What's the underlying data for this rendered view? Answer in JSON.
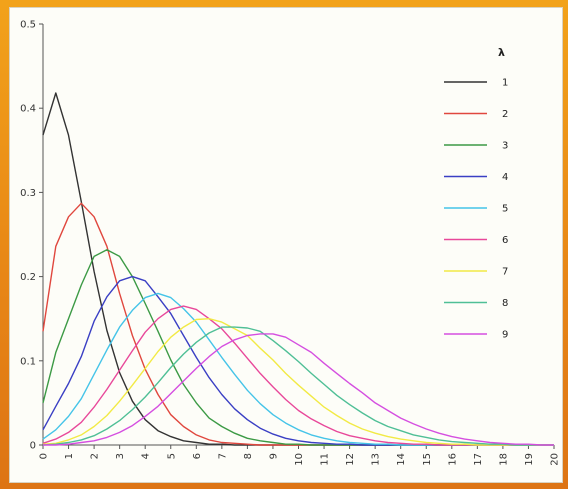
{
  "chart_data": {
    "type": "line",
    "title": "",
    "xlabel": "",
    "ylabel": "",
    "xlim": [
      0,
      20
    ],
    "ylim": [
      0,
      0.5
    ],
    "x_ticks": [
      "0",
      "1",
      "2",
      "3",
      "4",
      "5",
      "6",
      "7",
      "8",
      "9",
      "10",
      "11",
      "12",
      "13",
      "14",
      "15",
      "16",
      "17",
      "18",
      "19",
      "20"
    ],
    "y_ticks": [
      "0",
      "0.1",
      "0.2",
      "0.3",
      "0.4",
      "0.5"
    ],
    "grid": false,
    "legend": {
      "title": "λ",
      "placement": "top-right"
    },
    "x": [
      0,
      0.5,
      1,
      1.5,
      2,
      2.5,
      3,
      3.5,
      4,
      4.5,
      5,
      5.5,
      6,
      6.5,
      7,
      7.5,
      8,
      8.5,
      9,
      9.5,
      10,
      10.5,
      11,
      11.5,
      12,
      12.5,
      13,
      13.5,
      14,
      14.5,
      15,
      15.5,
      16,
      16.5,
      17,
      17.5,
      18,
      18.5,
      19,
      19.5,
      20
    ],
    "series": [
      {
        "name": "1",
        "color": "#333333",
        "values": [
          0.368,
          0.418,
          0.368,
          0.289,
          0.206,
          0.136,
          0.086,
          0.052,
          0.03,
          0.017,
          0.01,
          0.005,
          0.003,
          0.001,
          0.001,
          0,
          0,
          0,
          0,
          0,
          0,
          0,
          0,
          0,
          0,
          0,
          0,
          0,
          0,
          0,
          0,
          0,
          0,
          0,
          0,
          0,
          0,
          0,
          0,
          0,
          0
        ]
      },
      {
        "name": "2",
        "color": "#e0473e",
        "values": [
          0.135,
          0.236,
          0.271,
          0.287,
          0.271,
          0.236,
          0.18,
          0.13,
          0.09,
          0.06,
          0.036,
          0.022,
          0.012,
          0.006,
          0.003,
          0.002,
          0.001,
          0,
          0,
          0,
          0,
          0,
          0,
          0,
          0,
          0,
          0,
          0,
          0,
          0,
          0,
          0,
          0,
          0,
          0,
          0,
          0,
          0,
          0,
          0,
          0
        ]
      },
      {
        "name": "3",
        "color": "#3c9a45",
        "values": [
          0.05,
          0.11,
          0.15,
          0.19,
          0.224,
          0.232,
          0.224,
          0.2,
          0.168,
          0.135,
          0.101,
          0.072,
          0.05,
          0.032,
          0.022,
          0.014,
          0.008,
          0.005,
          0.003,
          0.001,
          0.001,
          0,
          0,
          0,
          0,
          0,
          0,
          0,
          0,
          0,
          0,
          0,
          0,
          0,
          0,
          0,
          0,
          0,
          0,
          0,
          0
        ]
      },
      {
        "name": "4",
        "color": "#3a3fc4",
        "values": [
          0.018,
          0.046,
          0.073,
          0.105,
          0.147,
          0.176,
          0.195,
          0.2,
          0.195,
          0.176,
          0.156,
          0.13,
          0.104,
          0.08,
          0.06,
          0.043,
          0.03,
          0.02,
          0.013,
          0.008,
          0.005,
          0.003,
          0.002,
          0.001,
          0.001,
          0,
          0,
          0,
          0,
          0,
          0,
          0,
          0,
          0,
          0,
          0,
          0,
          0,
          0,
          0,
          0
        ]
      },
      {
        "name": "5",
        "color": "#45c4e8",
        "values": [
          0.007,
          0.018,
          0.034,
          0.055,
          0.084,
          0.113,
          0.14,
          0.16,
          0.175,
          0.18,
          0.175,
          0.162,
          0.146,
          0.125,
          0.104,
          0.084,
          0.065,
          0.049,
          0.036,
          0.026,
          0.018,
          0.012,
          0.008,
          0.005,
          0.003,
          0.002,
          0.001,
          0.001,
          0,
          0,
          0,
          0,
          0,
          0,
          0,
          0,
          0,
          0,
          0,
          0,
          0
        ]
      },
      {
        "name": "6",
        "color": "#e8489a",
        "values": [
          0.002,
          0.007,
          0.015,
          0.027,
          0.045,
          0.066,
          0.089,
          0.112,
          0.134,
          0.15,
          0.161,
          0.165,
          0.161,
          0.15,
          0.138,
          0.121,
          0.103,
          0.085,
          0.069,
          0.054,
          0.041,
          0.031,
          0.023,
          0.016,
          0.011,
          0.008,
          0.005,
          0.003,
          0.002,
          0.001,
          0.001,
          0,
          0,
          0,
          0,
          0,
          0,
          0,
          0,
          0,
          0
        ]
      },
      {
        "name": "7",
        "color": "#f2ea45",
        "values": [
          0.001,
          0.002,
          0.006,
          0.012,
          0.022,
          0.035,
          0.052,
          0.071,
          0.091,
          0.111,
          0.128,
          0.14,
          0.149,
          0.15,
          0.146,
          0.138,
          0.13,
          0.115,
          0.101,
          0.085,
          0.071,
          0.058,
          0.045,
          0.035,
          0.026,
          0.019,
          0.014,
          0.01,
          0.007,
          0.005,
          0.003,
          0.002,
          0.001,
          0.001,
          0,
          0,
          0,
          0,
          0,
          0,
          0
        ]
      },
      {
        "name": "8",
        "color": "#4fbf96",
        "values": [
          0,
          0.001,
          0.003,
          0.006,
          0.011,
          0.019,
          0.029,
          0.042,
          0.057,
          0.074,
          0.092,
          0.108,
          0.122,
          0.133,
          0.14,
          0.14,
          0.139,
          0.135,
          0.124,
          0.112,
          0.099,
          0.085,
          0.072,
          0.059,
          0.048,
          0.038,
          0.029,
          0.022,
          0.017,
          0.012,
          0.009,
          0.006,
          0.004,
          0.003,
          0.002,
          0.001,
          0.001,
          0,
          0,
          0,
          0
        ]
      },
      {
        "name": "9",
        "color": "#d54fe0",
        "values": [
          0,
          0,
          0.001,
          0.003,
          0.005,
          0.009,
          0.015,
          0.023,
          0.034,
          0.046,
          0.061,
          0.076,
          0.091,
          0.105,
          0.117,
          0.125,
          0.13,
          0.132,
          0.132,
          0.128,
          0.119,
          0.11,
          0.097,
          0.085,
          0.073,
          0.062,
          0.05,
          0.041,
          0.032,
          0.025,
          0.019,
          0.014,
          0.01,
          0.007,
          0.005,
          0.003,
          0.002,
          0.001,
          0.001,
          0,
          0
        ]
      }
    ]
  }
}
